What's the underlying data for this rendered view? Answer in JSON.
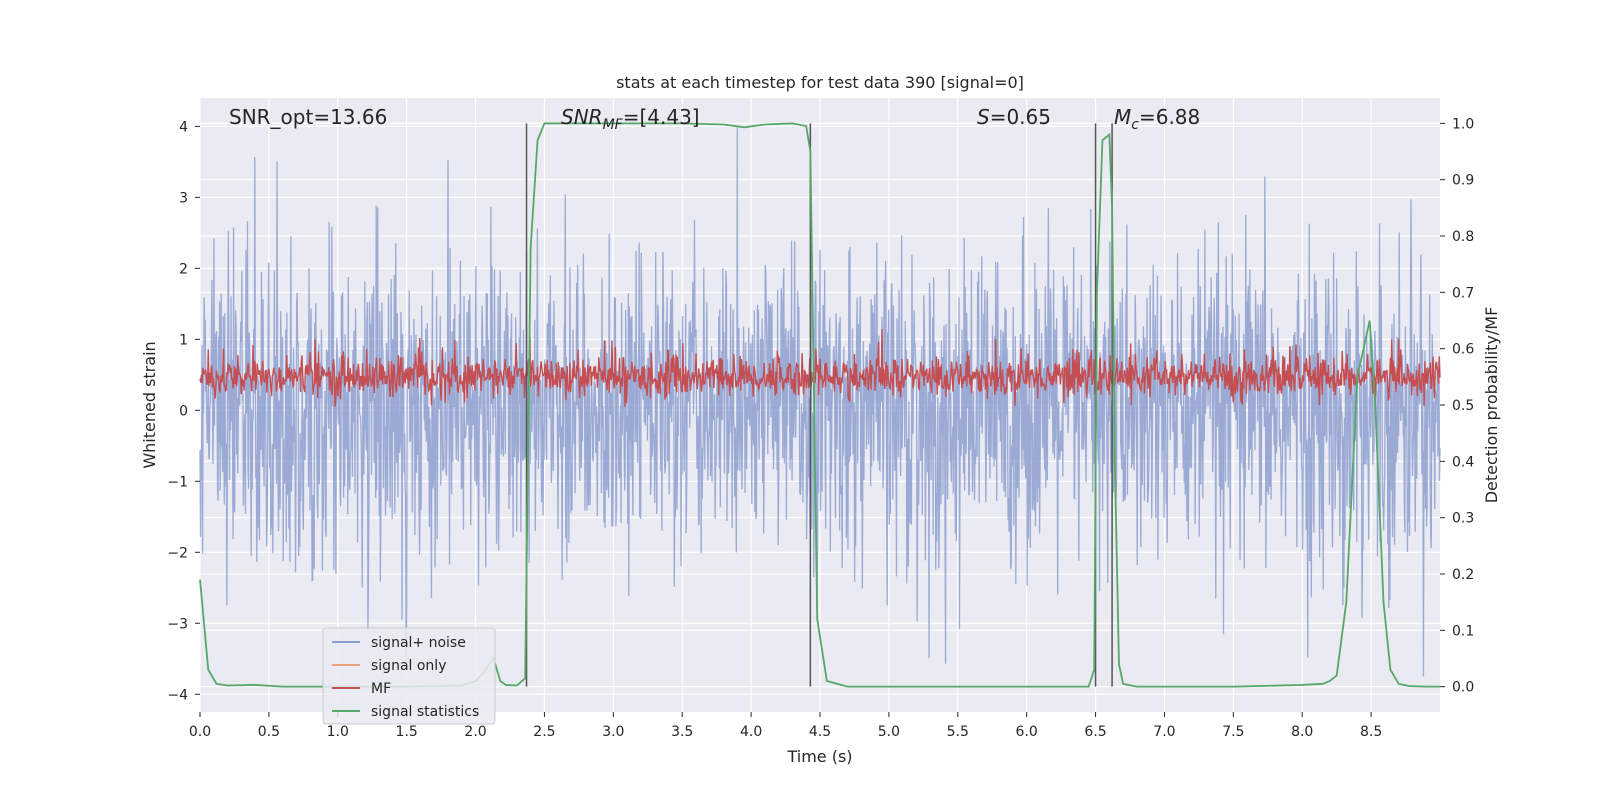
{
  "chart_data": {
    "type": "line",
    "title": "stats at each timestep for test data 390 [signal=0]",
    "xlabel": "Time (s)",
    "ylabel_left": "Whitened strain",
    "ylabel_right": "Detection probability/MF",
    "xlim": [
      0.0,
      9.0
    ],
    "ylim_left": [
      -4.25,
      4.4
    ],
    "ylim_right": [
      -0.045,
      1.045
    ],
    "x_ticks": [
      "0.0",
      "0.5",
      "1.0",
      "1.5",
      "2.0",
      "2.5",
      "3.0",
      "3.5",
      "4.0",
      "4.5",
      "5.0",
      "5.5",
      "6.0",
      "6.5",
      "7.0",
      "7.5",
      "8.0",
      "8.5"
    ],
    "y_left_ticks": [
      "4",
      "3",
      "2",
      "1",
      "0",
      "−1",
      "−2",
      "−3",
      "−4"
    ],
    "y_right_ticks": [
      "1.0",
      "0.9",
      "0.8",
      "0.7",
      "0.6",
      "0.5",
      "0.4",
      "0.3",
      "0.2",
      "0.1",
      "0.0"
    ],
    "grid": true,
    "annotations": {
      "snr_opt": "SNR_opt=13.66",
      "snr_mf_main": "SNR",
      "snr_mf_sub": "MF",
      "snr_mf_rest": "=[4.43]",
      "s_main": "S",
      "s_rest": "=0.65",
      "mc_main": "M",
      "mc_sub": "c",
      "mc_rest": "=6.88"
    },
    "legend": {
      "placement": "lower-left",
      "entries": [
        {
          "label": "signal+ noise",
          "color": "#8c9fcf"
        },
        {
          "label": "signal only",
          "color": "#e8a07f"
        },
        {
          "label": "MF",
          "color": "#c44e52"
        },
        {
          "label": "signal statistics",
          "color": "#55a868"
        }
      ]
    },
    "vertical_markers_x": [
      2.37,
      4.43,
      6.5,
      6.62
    ],
    "series": [
      {
        "name": "signal statistics",
        "color": "#55a868",
        "x": [
          0.0,
          0.06,
          0.12,
          0.2,
          0.4,
          0.6,
          1.0,
          1.5,
          1.9,
          2.0,
          2.06,
          2.1,
          2.13,
          2.18,
          2.22,
          2.3,
          2.36,
          2.4,
          2.45,
          2.5,
          2.55,
          3.0,
          3.5,
          3.8,
          3.95,
          4.1,
          4.3,
          4.4,
          4.43,
          4.48,
          4.55,
          4.7,
          5.0,
          5.5,
          6.0,
          6.45,
          6.49,
          6.51,
          6.55,
          6.6,
          6.62,
          6.64,
          6.67,
          6.7,
          6.8,
          7.0,
          7.5,
          8.0,
          8.15,
          8.2,
          8.25,
          8.32,
          8.4,
          8.49,
          8.53,
          8.59,
          8.64,
          8.7,
          8.78,
          8.9,
          9.0
        ],
        "y": [
          0.19,
          0.03,
          0.005,
          0.002,
          0.003,
          0.0,
          0.0,
          0.0,
          0.002,
          0.01,
          0.025,
          0.04,
          0.05,
          0.01,
          0.003,
          0.002,
          0.015,
          0.78,
          0.97,
          1.0,
          1.0,
          1.0,
          1.0,
          0.998,
          0.993,
          0.998,
          1.0,
          0.995,
          0.95,
          0.12,
          0.01,
          0.0,
          0.0,
          0.0,
          0.0,
          0.0,
          0.03,
          0.7,
          0.97,
          0.98,
          0.85,
          0.4,
          0.04,
          0.005,
          0.0,
          0.0,
          0.0,
          0.003,
          0.005,
          0.01,
          0.02,
          0.15,
          0.55,
          0.65,
          0.5,
          0.15,
          0.03,
          0.005,
          0.001,
          0.0,
          0.0
        ]
      }
    ]
  }
}
